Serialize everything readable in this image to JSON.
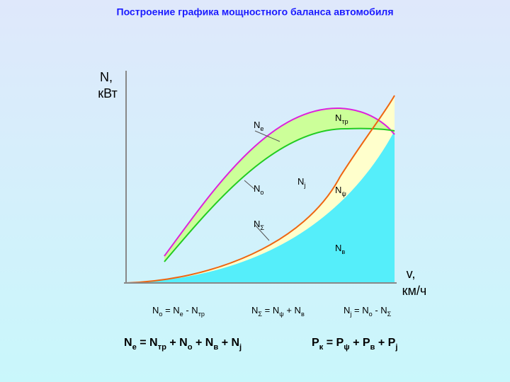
{
  "title": "Построение графика мощностного баланса автомобиля",
  "axes": {
    "y_label": [
      "N,",
      "кВт"
    ],
    "x_label": [
      "v,",
      "км/ч"
    ]
  },
  "curve_labels": [
    {
      "base": "N",
      "sub": "е"
    },
    {
      "base": "N",
      "sub": "тр"
    },
    {
      "base": "N",
      "sub": "j"
    },
    {
      "base": "N",
      "sub": "о"
    },
    {
      "base": "N",
      "sub": "ψ"
    },
    {
      "base": "N",
      "sub": "Σ"
    },
    {
      "base": "N",
      "sub": "в"
    }
  ],
  "formulas": [
    [
      {
        "t": "N"
      },
      {
        "s": "о"
      },
      {
        "t": " = N"
      },
      {
        "s": "е"
      },
      {
        "t": " - N"
      },
      {
        "s": "тр"
      }
    ],
    [
      {
        "t": "N"
      },
      {
        "s": "Σ"
      },
      {
        "t": " = N"
      },
      {
        "s": "ψ"
      },
      {
        "t": " + N"
      },
      {
        "s": "в"
      }
    ],
    [
      {
        "t": "N"
      },
      {
        "s": "j"
      },
      {
        "t": " = N"
      },
      {
        "s": "о"
      },
      {
        "t": " - N"
      },
      {
        "s": "Σ"
      }
    ]
  ],
  "equations": [
    [
      {
        "t": "N"
      },
      {
        "s": "е"
      },
      {
        "t": " = N"
      },
      {
        "s": "тр"
      },
      {
        "t": " + N"
      },
      {
        "s": "о"
      },
      {
        "t": " + N"
      },
      {
        "s": "в"
      },
      {
        "t": " + N"
      },
      {
        "s": "j"
      }
    ],
    [
      {
        "t": "P"
      },
      {
        "s": "к"
      },
      {
        "t": " = P"
      },
      {
        "s": "ψ"
      },
      {
        "t": " + P"
      },
      {
        "s": "в"
      },
      {
        "t": " + P"
      },
      {
        "s": "j"
      }
    ]
  ]
}
